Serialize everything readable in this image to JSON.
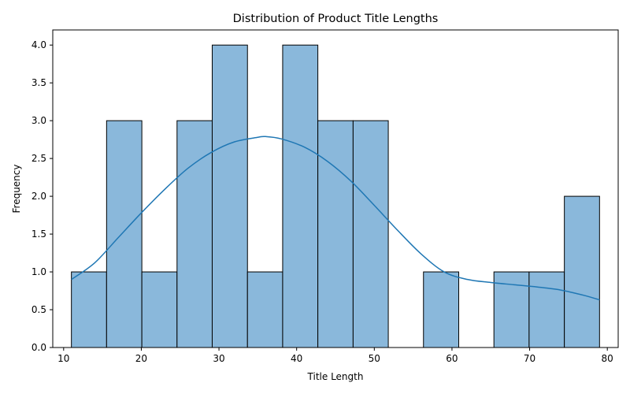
{
  "chart_data": {
    "type": "bar",
    "title": "Distribution of Product Title Lengths",
    "xlabel": "Title Length",
    "ylabel": "Frequency",
    "xlim": [
      8.6,
      81.4
    ],
    "ylim": [
      0,
      4.2
    ],
    "xticks": [
      10,
      20,
      30,
      40,
      50,
      60,
      70,
      80
    ],
    "yticks": [
      0.0,
      0.5,
      1.0,
      1.5,
      2.0,
      2.5,
      3.0,
      3.5,
      4.0
    ],
    "xtick_labels": [
      "10",
      "20",
      "30",
      "40",
      "50",
      "60",
      "70",
      "80"
    ],
    "ytick_labels": [
      "0.0",
      "0.5",
      "1.0",
      "1.5",
      "2.0",
      "2.5",
      "3.0",
      "3.5",
      "4.0"
    ],
    "bins": [
      {
        "start": 11.0,
        "end": 15.53,
        "count": 1
      },
      {
        "start": 15.53,
        "end": 20.07,
        "count": 3
      },
      {
        "start": 20.07,
        "end": 24.6,
        "count": 1
      },
      {
        "start": 24.6,
        "end": 29.13,
        "count": 3
      },
      {
        "start": 29.13,
        "end": 33.67,
        "count": 4
      },
      {
        "start": 33.67,
        "end": 38.2,
        "count": 1
      },
      {
        "start": 38.2,
        "end": 42.73,
        "count": 4
      },
      {
        "start": 42.73,
        "end": 47.27,
        "count": 3
      },
      {
        "start": 47.27,
        "end": 51.8,
        "count": 3
      },
      {
        "start": 51.8,
        "end": 56.33,
        "count": 0
      },
      {
        "start": 56.33,
        "end": 60.87,
        "count": 1
      },
      {
        "start": 60.87,
        "end": 65.4,
        "count": 0
      },
      {
        "start": 65.4,
        "end": 69.93,
        "count": 1
      },
      {
        "start": 69.93,
        "end": 74.47,
        "count": 1
      },
      {
        "start": 74.47,
        "end": 79.0,
        "count": 2
      }
    ],
    "kde": {
      "x": [
        11,
        14,
        17,
        20,
        23,
        26,
        29,
        32,
        35,
        36,
        38,
        41,
        44,
        47,
        50,
        53,
        56,
        59,
        62,
        65,
        68,
        71,
        74,
        77,
        79
      ],
      "y": [
        0.9,
        1.12,
        1.45,
        1.78,
        2.09,
        2.37,
        2.58,
        2.72,
        2.78,
        2.79,
        2.76,
        2.65,
        2.46,
        2.2,
        1.88,
        1.55,
        1.24,
        1.0,
        0.9,
        0.86,
        0.83,
        0.8,
        0.76,
        0.69,
        0.63
      ]
    },
    "colors": {
      "bar_fill": "#8ab8db",
      "bar_edge": "#000000",
      "kde_line": "#1f77b4"
    },
    "grid": false,
    "legend": "none"
  }
}
